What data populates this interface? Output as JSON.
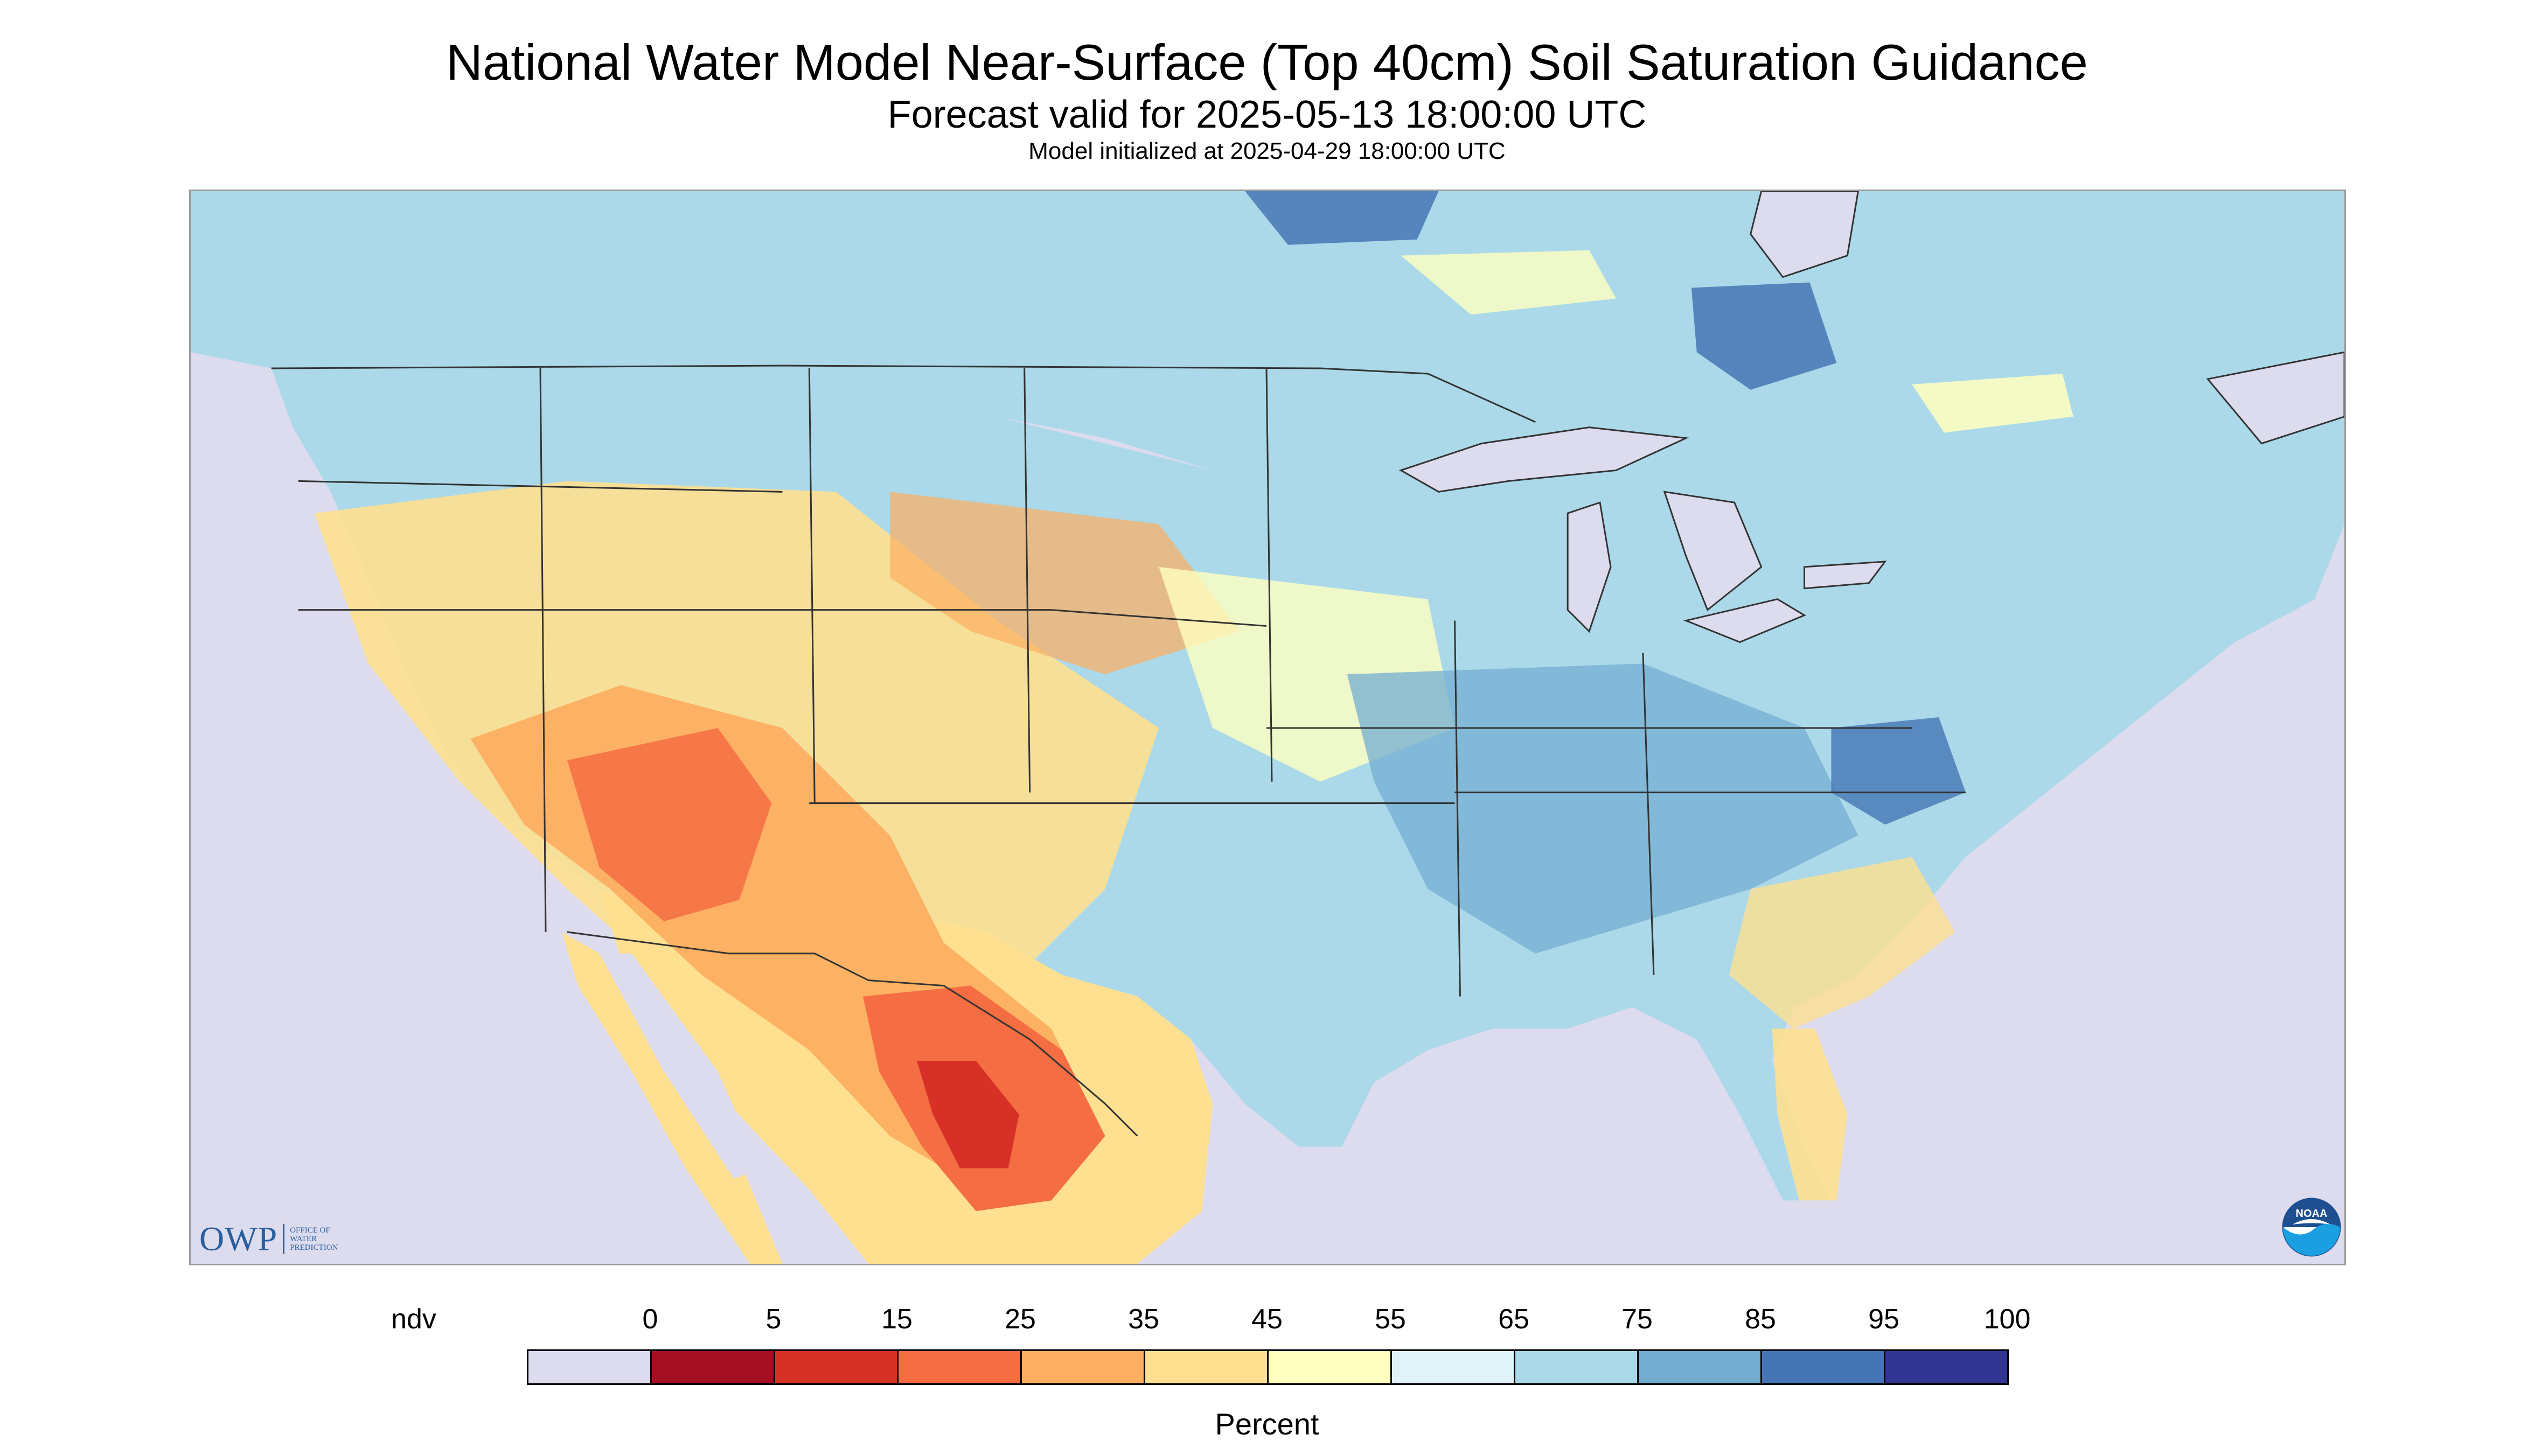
{
  "title": "National Water Model Near-Surface (Top 40cm) Soil Saturation Guidance",
  "subtitle": "Forecast valid for 2025-05-13 18:00:00 UTC",
  "init_line": "Model initialized at 2025-04-29 18:00:00 UTC",
  "logo_owp": {
    "mark": "OWP",
    "text_lines": [
      "OFFICE OF",
      "WATER",
      "PREDICTION"
    ]
  },
  "logo_noaa": {
    "text": "NOAA",
    "icon": "noaa-emblem-icon"
  },
  "legend": {
    "unit_label": "Percent",
    "labels": [
      "ndv",
      "0",
      "5",
      "15",
      "25",
      "35",
      "45",
      "55",
      "65",
      "75",
      "85",
      "95",
      "100"
    ],
    "colors": [
      "#dcdcee",
      "#a50f22",
      "#d73027",
      "#f46d43",
      "#fdae61",
      "#fee090",
      "#ffffbf",
      "#e0f3f8",
      "#abd9e9",
      "#74add1",
      "#4575b4",
      "#313695"
    ]
  },
  "map_colors": {
    "water": "#dcdcee",
    "dry_deep": "#d73027",
    "dry": "#f46d43",
    "moderately_dry": "#fdae61",
    "slightly_dry": "#fee090",
    "neutral": "#ffffbf",
    "slightly_wet": "#e0f3f8",
    "wet": "#abd9e9",
    "wetter": "#74add1",
    "very_wet": "#4575b4",
    "border": "#333333"
  }
}
